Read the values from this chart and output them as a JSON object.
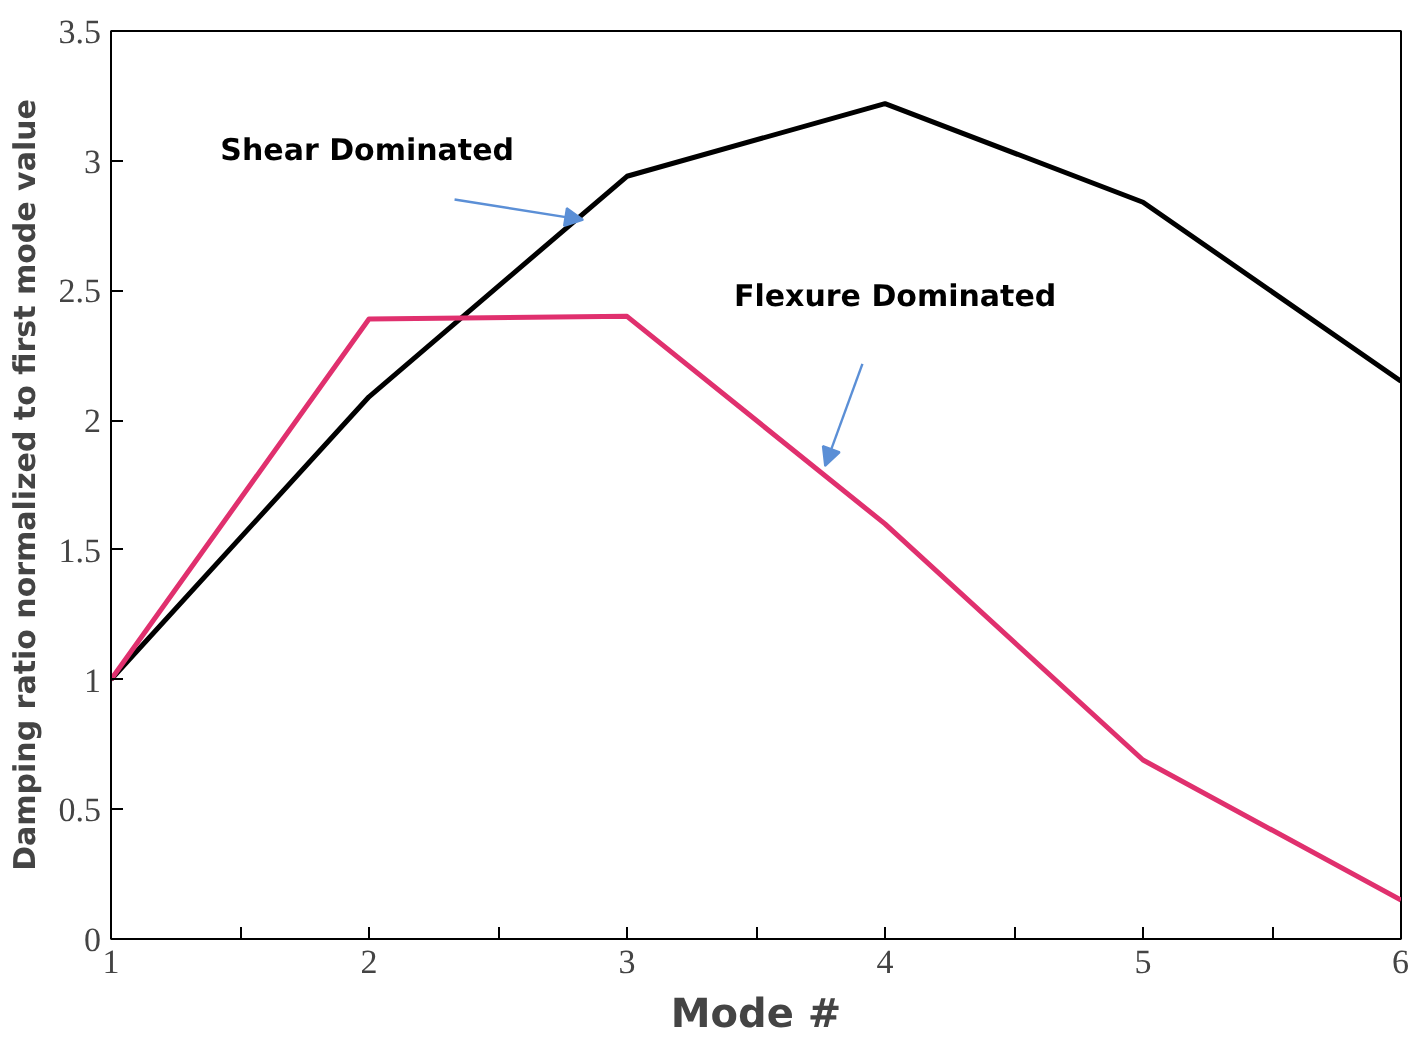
{
  "chart_data": {
    "type": "line",
    "xlabel": "Mode #",
    "ylabel": "Damping ratio normalized to first mode value",
    "x": [
      1,
      2,
      3,
      4,
      5,
      6
    ],
    "series": [
      {
        "name": "Shear Dominated",
        "color": "#000000",
        "values": [
          1,
          2.09,
          2.94,
          3.22,
          2.84,
          2.15
        ]
      },
      {
        "name": "Flexure Dominated",
        "color": "#e0306e",
        "values": [
          1,
          2.39,
          2.4,
          1.6,
          0.69,
          0.15
        ]
      }
    ],
    "xlim": [
      1,
      6
    ],
    "ylim": [
      0,
      3.5
    ],
    "xticks": [
      1,
      {
        "value": 1.5,
        "label": null
      },
      2,
      {
        "value": 2.5,
        "label": null
      },
      3,
      {
        "value": 3.5,
        "label": null
      },
      4,
      {
        "value": 4.5,
        "label": null
      },
      5,
      {
        "value": 5.5,
        "label": null
      },
      6
    ],
    "yticks": [
      0,
      0.5,
      1,
      1.5,
      2,
      2.5,
      3,
      3.5
    ],
    "grid": false,
    "legend": false,
    "marker": "none",
    "line_style": "solid"
  }
}
